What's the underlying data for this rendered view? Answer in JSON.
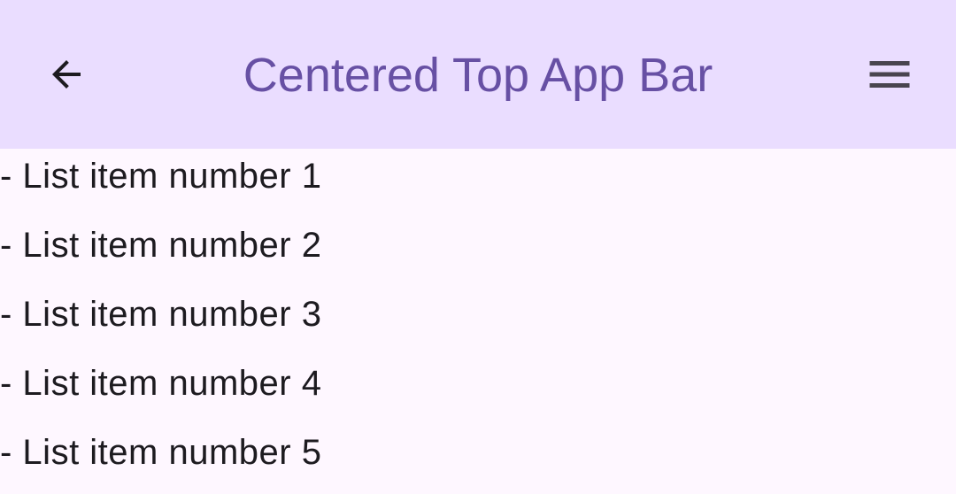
{
  "app_bar": {
    "title": "Centered Top App Bar",
    "background": "#EADDFF",
    "title_color": "#6750A4",
    "navigation_icon": "arrow-back-icon",
    "action_icon": "menu-icon"
  },
  "list": {
    "items": [
      {
        "label": "- List item number 1"
      },
      {
        "label": "- List item number 2"
      },
      {
        "label": "- List item number 3"
      },
      {
        "label": "- List item number 4"
      },
      {
        "label": "- List item number 5"
      }
    ]
  }
}
